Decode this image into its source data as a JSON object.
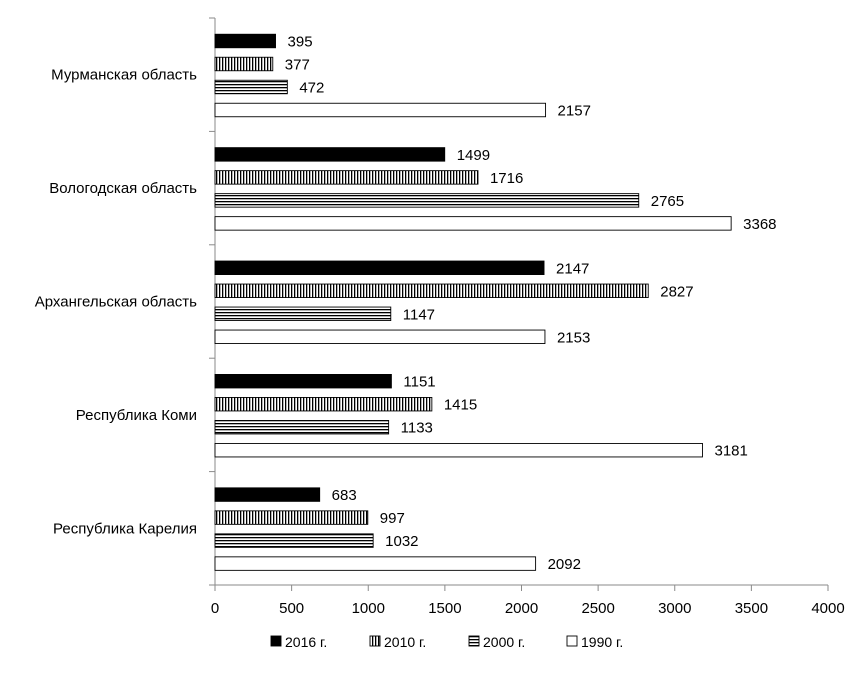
{
  "chart_data": {
    "type": "bar",
    "orientation": "horizontal",
    "categories": [
      "Мурманская область",
      "Вологодская область",
      "Архангельская область",
      "Республика Коми",
      "Республика Карелия"
    ],
    "series": [
      {
        "name": "2016 г.",
        "pattern": "solid",
        "color": "#000000",
        "values": [
          395,
          1499,
          2147,
          1151,
          683
        ]
      },
      {
        "name": "2010 г.",
        "pattern": "vertical-stripes",
        "color": "#000000",
        "values": [
          377,
          1716,
          2827,
          1415,
          997
        ]
      },
      {
        "name": "2000 г.",
        "pattern": "horizontal-stripes",
        "color": "#000000",
        "values": [
          472,
          2765,
          1147,
          1133,
          1032
        ]
      },
      {
        "name": "1990 г.",
        "pattern": "empty",
        "color": "#ffffff",
        "values": [
          2157,
          3368,
          2153,
          3181,
          2092
        ]
      }
    ],
    "xlim": [
      0,
      4000
    ],
    "x_ticks": [
      "0",
      "500",
      "1000",
      "1500",
      "2000",
      "2500",
      "3000",
      "3500",
      "4000"
    ],
    "grid": false,
    "legend_position": "bottom",
    "data_labels": true
  }
}
